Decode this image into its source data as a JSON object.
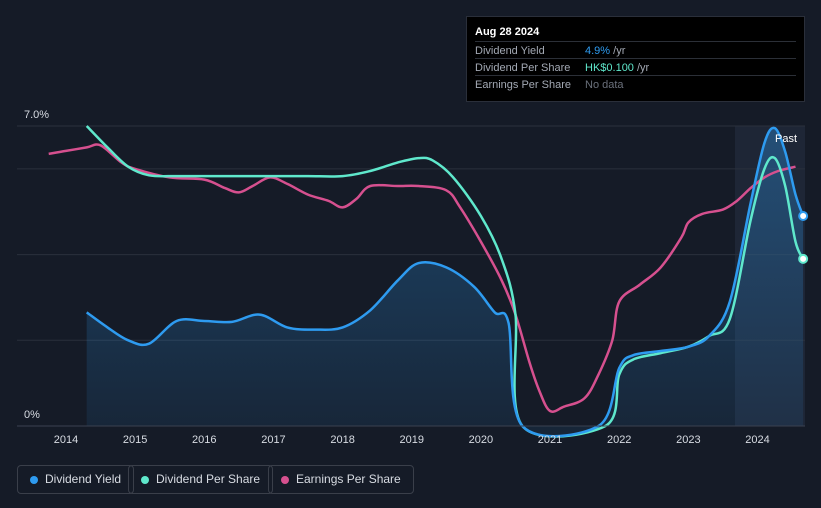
{
  "tooltip": {
    "date": "Aug 28 2024",
    "rows": [
      {
        "label": "Dividend Yield",
        "value": "4.9%",
        "unit": " /yr"
      },
      {
        "label": "Dividend Per Share",
        "value": "HK$0.100",
        "unit": " /yr"
      },
      {
        "label": "Earnings Per Share",
        "value": "No data",
        "unit": ""
      }
    ]
  },
  "legend": [
    {
      "label": "Dividend Yield",
      "color": "#2e9bf0"
    },
    {
      "label": "Dividend Per Share",
      "color": "#5fe8cc"
    },
    {
      "label": "Earnings Per Share",
      "color": "#d6508f"
    }
  ],
  "chart_data": {
    "type": "line",
    "x_ticks": [
      "2014",
      "2015",
      "2016",
      "2017",
      "2018",
      "2019",
      "2020",
      "2021",
      "2022",
      "2023",
      "2024"
    ],
    "y_ticks": [
      "7.0%",
      "0%"
    ],
    "ylim": [
      0,
      7.0
    ],
    "past_label": "Past",
    "series": [
      {
        "name": "Dividend Yield",
        "color": "#2e9bf0",
        "points": [
          [
            2014.3,
            2.65
          ],
          [
            2014.6,
            2.3
          ],
          [
            2014.9,
            2.0
          ],
          [
            2015.2,
            1.92
          ],
          [
            2015.6,
            2.45
          ],
          [
            2016.0,
            2.45
          ],
          [
            2016.4,
            2.43
          ],
          [
            2016.8,
            2.6
          ],
          [
            2017.2,
            2.3
          ],
          [
            2017.6,
            2.25
          ],
          [
            2018.0,
            2.3
          ],
          [
            2018.4,
            2.7
          ],
          [
            2018.8,
            3.4
          ],
          [
            2019.1,
            3.8
          ],
          [
            2019.5,
            3.7
          ],
          [
            2019.9,
            3.25
          ],
          [
            2020.2,
            2.65
          ],
          [
            2020.4,
            2.4
          ],
          [
            2020.6,
            0.0
          ],
          [
            2021.7,
            0.0
          ],
          [
            2022.0,
            1.35
          ],
          [
            2022.2,
            1.65
          ],
          [
            2022.6,
            1.75
          ],
          [
            2023.0,
            1.85
          ],
          [
            2023.3,
            2.1
          ],
          [
            2023.6,
            2.9
          ],
          [
            2023.9,
            5.2
          ],
          [
            2024.1,
            6.6
          ],
          [
            2024.25,
            6.95
          ],
          [
            2024.4,
            6.4
          ],
          [
            2024.55,
            5.4
          ],
          [
            2024.66,
            4.9
          ]
        ]
      },
      {
        "name": "Dividend Per Share",
        "color": "#5fe8cc",
        "points": [
          [
            2014.3,
            7.0
          ],
          [
            2014.6,
            6.5
          ],
          [
            2014.9,
            6.05
          ],
          [
            2015.2,
            5.85
          ],
          [
            2015.6,
            5.83
          ],
          [
            2016.0,
            5.83
          ],
          [
            2016.5,
            5.83
          ],
          [
            2017.0,
            5.83
          ],
          [
            2017.5,
            5.83
          ],
          [
            2018.0,
            5.83
          ],
          [
            2018.4,
            5.95
          ],
          [
            2018.8,
            6.15
          ],
          [
            2019.1,
            6.25
          ],
          [
            2019.3,
            6.2
          ],
          [
            2019.6,
            5.8
          ],
          [
            2020.0,
            4.9
          ],
          [
            2020.3,
            3.9
          ],
          [
            2020.5,
            2.6
          ],
          [
            2020.6,
            0.0
          ],
          [
            2021.8,
            0.0
          ],
          [
            2022.0,
            1.2
          ],
          [
            2022.2,
            1.55
          ],
          [
            2022.6,
            1.7
          ],
          [
            2023.0,
            1.85
          ],
          [
            2023.3,
            2.1
          ],
          [
            2023.6,
            2.5
          ],
          [
            2023.9,
            4.8
          ],
          [
            2024.1,
            6.0
          ],
          [
            2024.25,
            6.25
          ],
          [
            2024.4,
            5.6
          ],
          [
            2024.55,
            4.3
          ],
          [
            2024.66,
            3.9
          ]
        ]
      },
      {
        "name": "Earnings Per Share",
        "color": "#d6508f",
        "points": [
          [
            2013.75,
            6.35
          ],
          [
            2014.0,
            6.42
          ],
          [
            2014.3,
            6.5
          ],
          [
            2014.5,
            6.55
          ],
          [
            2014.8,
            6.15
          ],
          [
            2015.0,
            6.0
          ],
          [
            2015.5,
            5.8
          ],
          [
            2016.0,
            5.75
          ],
          [
            2016.3,
            5.55
          ],
          [
            2016.5,
            5.45
          ],
          [
            2016.7,
            5.6
          ],
          [
            2016.95,
            5.8
          ],
          [
            2017.2,
            5.65
          ],
          [
            2017.5,
            5.4
          ],
          [
            2017.8,
            5.25
          ],
          [
            2018.0,
            5.1
          ],
          [
            2018.2,
            5.3
          ],
          [
            2018.4,
            5.6
          ],
          [
            2018.8,
            5.6
          ],
          [
            2019.1,
            5.6
          ],
          [
            2019.5,
            5.5
          ],
          [
            2019.7,
            5.1
          ],
          [
            2020.0,
            4.3
          ],
          [
            2020.3,
            3.4
          ],
          [
            2020.5,
            2.6
          ],
          [
            2020.7,
            1.5
          ],
          [
            2020.85,
            0.8
          ],
          [
            2021.0,
            0.35
          ],
          [
            2021.2,
            0.45
          ],
          [
            2021.5,
            0.65
          ],
          [
            2021.7,
            1.2
          ],
          [
            2021.9,
            2.0
          ],
          [
            2022.0,
            2.9
          ],
          [
            2022.3,
            3.3
          ],
          [
            2022.6,
            3.7
          ],
          [
            2022.9,
            4.4
          ],
          [
            2023.0,
            4.75
          ],
          [
            2023.2,
            4.95
          ],
          [
            2023.5,
            5.05
          ],
          [
            2023.7,
            5.25
          ],
          [
            2023.9,
            5.55
          ],
          [
            2024.1,
            5.8
          ],
          [
            2024.3,
            5.95
          ],
          [
            2024.55,
            6.05
          ]
        ]
      }
    ]
  }
}
